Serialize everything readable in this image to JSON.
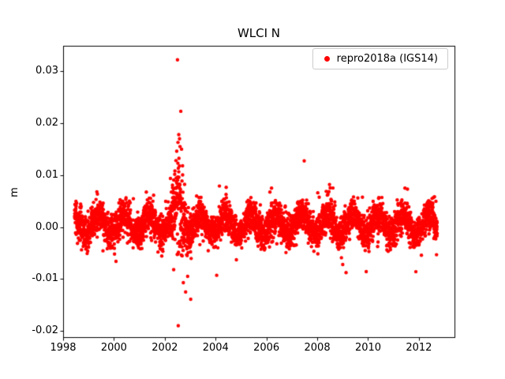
{
  "chart_data": {
    "type": "scatter",
    "title": "WLCI N",
    "xlabel": "",
    "ylabel": "m",
    "xlim": [
      1998.0,
      2013.4
    ],
    "ylim": [
      -0.0212,
      0.0349
    ],
    "xticks": [
      1998,
      2000,
      2002,
      2004,
      2006,
      2008,
      2010,
      2012
    ],
    "yticks": [
      -0.02,
      -0.01,
      0.0,
      0.01,
      0.02,
      0.03
    ],
    "grid": false,
    "legend_position": "upper right",
    "series": [
      {
        "name": "repro2018a (IGS14)",
        "color": "#ff0000",
        "marker": "dot",
        "generator": {
          "seed": 42,
          "x_start": 1998.45,
          "x_end": 2012.72,
          "n_points": 4200,
          "mean": 0.0005,
          "seasonal_amplitude": 0.0018,
          "seasonal_phase": 0.15,
          "noise_sigma": 0.0016,
          "heavy_tail_prob": 0.03,
          "heavy_tail_scale": 2.2,
          "anomaly": {
            "x_start": 2002.15,
            "x_end": 2003.2,
            "center": 2002.55,
            "sigma": 0.18,
            "pos_prob": 0.72,
            "pos_base": 0.0015,
            "pos_scale": 0.0045,
            "neg_base": 0.0008,
            "neg_scale": 0.0032
          }
        },
        "outliers": [
          [
            2002.5,
            0.0322
          ],
          [
            2002.63,
            0.0223
          ],
          [
            2002.55,
            0.0178
          ],
          [
            2002.58,
            0.017
          ],
          [
            2002.52,
            0.0163
          ],
          [
            2002.6,
            0.0155
          ],
          [
            2002.66,
            0.015
          ],
          [
            2002.47,
            0.0146
          ],
          [
            2002.44,
            0.0128
          ],
          [
            2002.7,
            0.0118
          ],
          [
            2002.53,
            -0.019
          ],
          [
            2003.02,
            -0.0139
          ],
          [
            2002.82,
            -0.0125
          ],
          [
            2002.73,
            -0.0107
          ],
          [
            2002.9,
            -0.0095
          ],
          [
            2002.35,
            -0.0082
          ],
          [
            2011.88,
            -0.0086
          ],
          [
            2011.45,
            0.0075
          ],
          [
            2011.55,
            0.0073
          ],
          [
            2006.2,
            0.0075
          ],
          [
            2004.15,
            0.0079
          ],
          [
            2008.02,
            0.0066
          ]
        ]
      }
    ]
  }
}
